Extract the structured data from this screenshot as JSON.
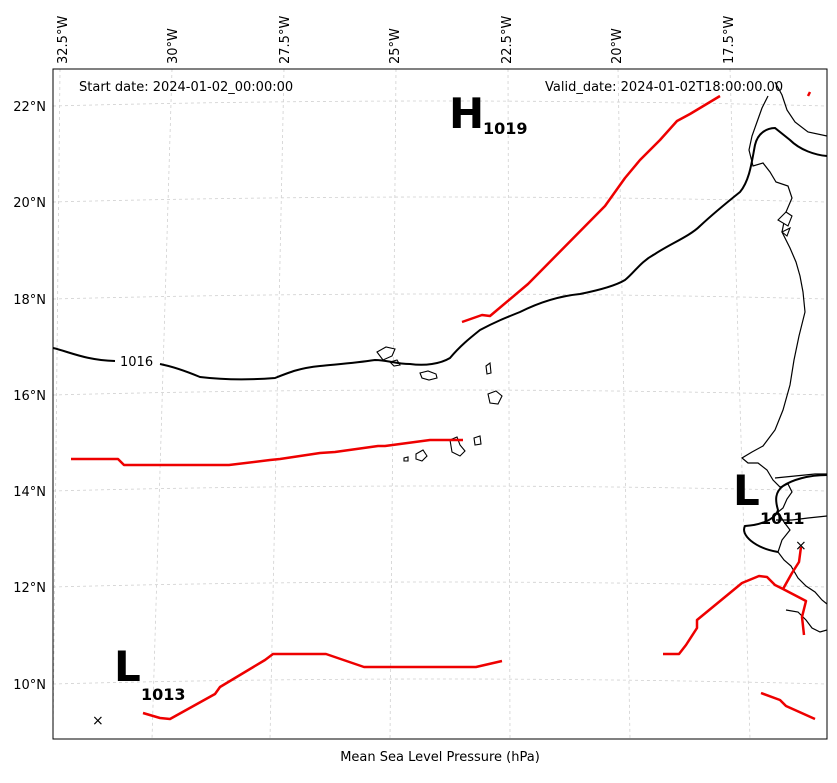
{
  "map": {
    "start_date": "Start date: 2024-01-02_00:00:00",
    "valid_date": "Valid_date: 2024-01-02T18:00:00.00",
    "caption": "Mean Sea Level Pressure (hPa)",
    "contour_label": "1016",
    "lon_labels": [
      "32.5°W",
      "30°W",
      "27.5°W",
      "25°W",
      "22.5°W",
      "20°W",
      "17.5°W"
    ],
    "lat_labels": [
      "22°N",
      "20°N",
      "18°N",
      "16°N",
      "14°N",
      "12°N",
      "10°N"
    ],
    "pressure_systems": [
      {
        "type": "H",
        "value": "1019"
      },
      {
        "type": "L",
        "value": "1011"
      },
      {
        "type": "L",
        "value": "1013"
      }
    ],
    "center_marker": "×",
    "colors": {
      "isobar": "#000000",
      "front": "#ee0000",
      "grid": "#d0d0d0"
    }
  }
}
